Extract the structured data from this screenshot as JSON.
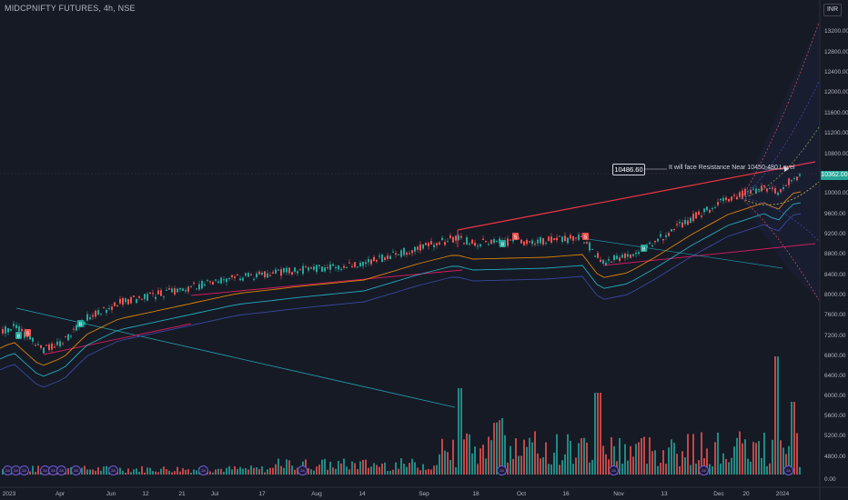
{
  "header": {
    "symbol_line": "MIDCPNIFTY FUTURES, 4h, NSE",
    "currency": "INR"
  },
  "price_axis": {
    "labels": [
      "13200.00",
      "12800.00",
      "12400.00",
      "12000.00",
      "11600.00",
      "11200.00",
      "10800.00",
      "10000.00",
      "9600.00",
      "9200.00",
      "8800.00",
      "8400.00",
      "8000.00",
      "7600.00",
      "7200.00",
      "6800.00",
      "6400.00",
      "6000.00",
      "5600.00",
      "5200.00",
      "4800.00",
      "0.00"
    ],
    "last_price": "10362.00"
  },
  "time_axis": {
    "labels": [
      "2023",
      "Apr",
      "Jun",
      "12",
      "21",
      "Jul",
      "17",
      "Aug",
      "14",
      "Sep",
      "18",
      "Oct",
      "16",
      "Nov",
      "13",
      "Dec",
      "20",
      "2024"
    ]
  },
  "annotation": {
    "price": "10486.60",
    "text": "It will face Resistance Near 10450-480 Level"
  },
  "events": {
    "symbol": "24",
    "count": 12
  },
  "colors": {
    "background": "#161a25",
    "up": "#26a69a",
    "down": "#ef5350",
    "resistance_line": "#f23645",
    "trend_line": "#d81b60",
    "ema_orange": "#ff9800",
    "ema_teal": "#26c6da",
    "ema_blue": "#3f51b5"
  },
  "chart_data": {
    "type": "candlestick",
    "title": "MIDCPNIFTY FUTURES, 4h, NSE",
    "y_range": [
      6800,
      13400
    ],
    "x_range": [
      "2023-01",
      "2024-01"
    ],
    "approx_path": [
      {
        "x": "2023-01",
        "y": 7400
      },
      {
        "x": "2023-03",
        "y": 7000
      },
      {
        "x": "2023-04",
        "y": 7500
      },
      {
        "x": "2023-05",
        "y": 8000
      },
      {
        "x": "2023-06",
        "y": 8300
      },
      {
        "x": "2023-07",
        "y": 8500
      },
      {
        "x": "2023-08",
        "y": 8700
      },
      {
        "x": "2023-09",
        "y": 9200
      },
      {
        "x": "2023-10",
        "y": 9000
      },
      {
        "x": "2023-11",
        "y": 8800
      },
      {
        "x": "2023-12",
        "y": 9800
      },
      {
        "x": "2024-01",
        "y": 10362
      }
    ],
    "resistance_level": 10486.6,
    "volume_spikes": [
      "Sep",
      "Oct",
      "Dec"
    ]
  }
}
